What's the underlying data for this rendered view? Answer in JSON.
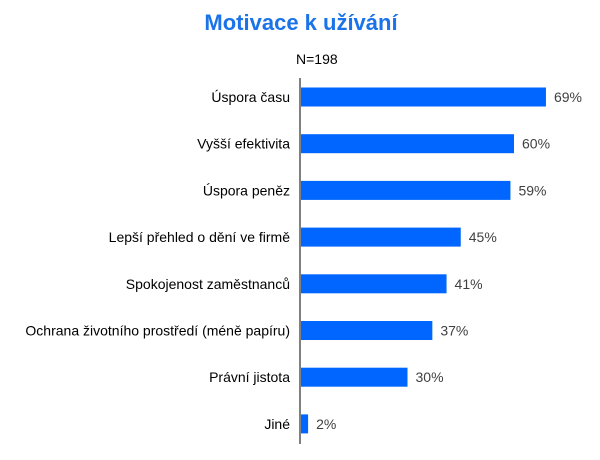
{
  "chart_data": {
    "type": "bar",
    "orientation": "horizontal",
    "title": "Motivace k užívání",
    "subtitle": "N=198",
    "categories": [
      "Úspora času",
      "Vyšší efektivita",
      "Úspora peněz",
      "Lepší přehled o dění ve firmě",
      "Spokojenost zaměstnanců",
      "Ochrana životního prostředí (méně papíru)",
      "Právní jistota",
      "Jiné"
    ],
    "values": [
      69,
      60,
      59,
      45,
      41,
      37,
      30,
      2
    ],
    "value_labels": [
      "69%",
      "60%",
      "59%",
      "45%",
      "41%",
      "37%",
      "30%",
      "2%"
    ],
    "unit": "%",
    "xlim": [
      0,
      100
    ],
    "grid": false,
    "legend": "none",
    "colors": {
      "bar": "#0066FF",
      "title": "#1A73E8",
      "value_label": "#404040",
      "axis": "#000000"
    }
  }
}
